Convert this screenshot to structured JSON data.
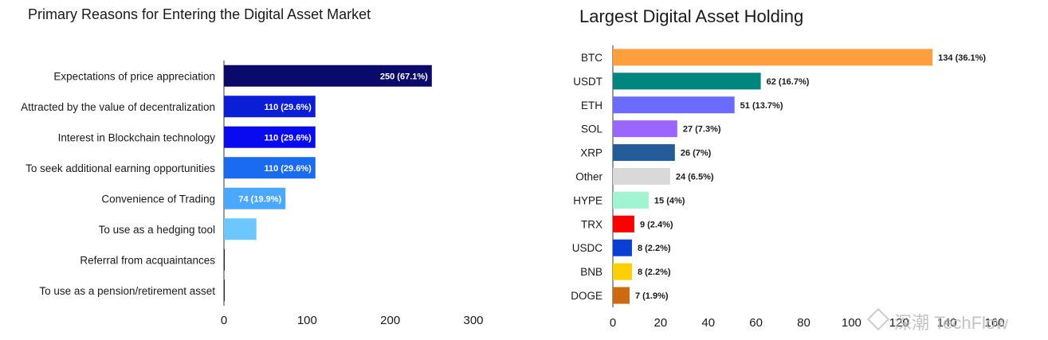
{
  "chart_data": [
    {
      "type": "bar",
      "orientation": "horizontal",
      "title": "Primary Reasons for Entering the Digital Asset Market",
      "categories": [
        "Expectations of price appreciation",
        "Attracted by the value of decentralization",
        "Interest in Blockchain technology",
        "To seek additional earning opportunities",
        "Convenience of Trading",
        "To use as a hedging tool",
        "Referral from acquaintances",
        "To use as a pension/retirement asset"
      ],
      "values": [
        250,
        110,
        110,
        110,
        74,
        39,
        1,
        1
      ],
      "data_labels": [
        "250 (67.1%)",
        "110 (29.6%)",
        "110 (29.6%)",
        "110 (29.6%)",
        "74 (19.9%)",
        "",
        "",
        ""
      ],
      "colors": [
        "#0a0a6b",
        "#0a1ed6",
        "#0a0af0",
        "#1a6bf0",
        "#4aa8ff",
        "#6cc6ff",
        "#2a2a2a",
        "#2a2a2a"
      ],
      "xlim": [
        0,
        300
      ],
      "xticks": [
        0,
        100,
        200,
        300
      ],
      "grid": false,
      "legend": "none"
    },
    {
      "type": "bar",
      "orientation": "horizontal",
      "title": "Largest Digital Asset Holding",
      "categories": [
        "BTC",
        "USDT",
        "ETH",
        "SOL",
        "XRP",
        "Other",
        "HYPE",
        "TRX",
        "USDC",
        "BNB",
        "DOGE"
      ],
      "values": [
        134,
        62,
        51,
        27,
        26,
        24,
        15,
        9,
        8,
        8,
        7
      ],
      "data_labels": [
        "134 (36.1%)",
        "62 (16.7%)",
        "51 (13.7%)",
        "27 (7.3%)",
        "26 (7%)",
        "24 (6.5%)",
        "15 (4%)",
        "9 (2.4%)",
        "8 (2.2%)",
        "8 (2.2%)",
        "7 (1.9%)"
      ],
      "colors": [
        "#ff9e3d",
        "#00857f",
        "#6b6bff",
        "#9a66ff",
        "#245c99",
        "#d9d9d9",
        "#9ff5d0",
        "#ff0000",
        "#0a3fd6",
        "#ffd000",
        "#cc6a0f"
      ],
      "xlim": [
        0,
        160
      ],
      "xticks": [
        0,
        20,
        40,
        60,
        80,
        100,
        120,
        140,
        160
      ],
      "grid": false,
      "legend": "none"
    }
  ],
  "watermark": "深潮 TechFlow"
}
